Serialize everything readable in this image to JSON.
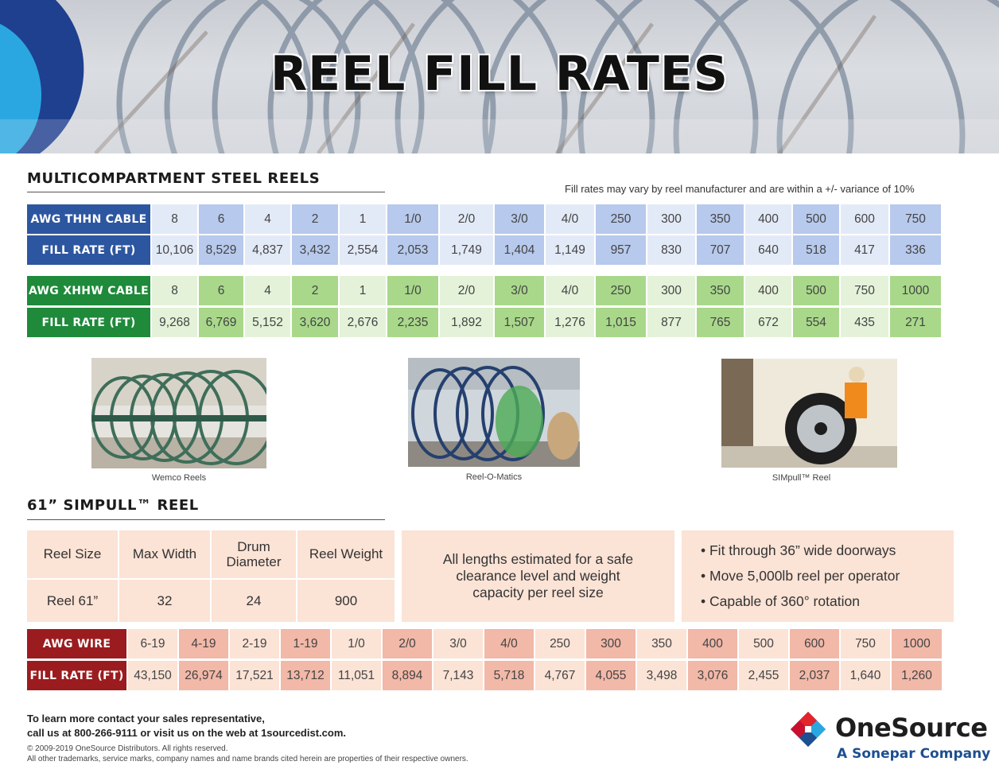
{
  "hero": {
    "title": "REEL FILL RATES"
  },
  "steel": {
    "heading": "MULTICOMPARTMENT STEEL REELS",
    "note": "Fill rates may vary by reel manufacturer and are within a +/- variance of 10%",
    "thhn": {
      "label": "AWG THHN CABLE",
      "sizes": [
        "8",
        "6",
        "4",
        "2",
        "1",
        "1/0",
        "2/0",
        "3/0",
        "4/0",
        "250",
        "300",
        "350",
        "400",
        "500",
        "600",
        "750"
      ],
      "rate_label": "FILL RATE (FT)",
      "rates": [
        "10,106",
        "8,529",
        "4,837",
        "3,432",
        "2,554",
        "2,053",
        "1,749",
        "1,404",
        "1,149",
        "957",
        "830",
        "707",
        "640",
        "518",
        "417",
        "336"
      ]
    },
    "xhhw": {
      "label": "AWG XHHW CABLE",
      "sizes": [
        "8",
        "6",
        "4",
        "2",
        "1",
        "1/0",
        "2/0",
        "3/0",
        "4/0",
        "250",
        "300",
        "350",
        "400",
        "500",
        "750",
        "1000"
      ],
      "rate_label": "FILL RATE (FT)",
      "rates": [
        "9,268",
        "6,769",
        "5,152",
        "3,620",
        "2,676",
        "2,235",
        "1,892",
        "1,507",
        "1,276",
        "1,015",
        "877",
        "765",
        "672",
        "554",
        "435",
        "271"
      ]
    }
  },
  "photos": [
    {
      "caption": "Wemco Reels"
    },
    {
      "caption": "Reel-O-Matics"
    },
    {
      "caption": "SIMpull™ Reel"
    }
  ],
  "simpull": {
    "heading": "61” SIMPULL™  REEL",
    "headers": [
      "Reel Size",
      "Max Width",
      "Drum Diameter",
      "Reel  Weight"
    ],
    "values": [
      "Reel 61”",
      "32",
      "24",
      "900"
    ],
    "estimate": "All lengths estimated for a safe clearance level and weight capacity per reel size",
    "bullets": [
      "• Fit through 36” wide doorways",
      "• Move 5,000lb reel per operator",
      "• Capable of 360° rotation"
    ],
    "wire": {
      "label": "AWG WIRE",
      "sizes": [
        "6-19",
        "4-19",
        "2-19",
        "1-19",
        "1/0",
        "2/0",
        "3/0",
        "4/0",
        "250",
        "300",
        "350",
        "400",
        "500",
        "600",
        "750",
        "1000"
      ],
      "rate_label": "FILL RATE (FT)",
      "rates": [
        "43,150",
        "26,974",
        "17,521",
        "13,712",
        "11,051",
        "8,894",
        "7,143",
        "5,718",
        "4,767",
        "4,055",
        "3,498",
        "3,076",
        "2,455",
        "2,037",
        "1,640",
        "1,260"
      ]
    }
  },
  "footer": {
    "contact_line1": "To learn more contact your sales representative,",
    "contact_line2": "call us at 800-266-9111 or visit us on the web at 1sourcedist.com.",
    "legal_line1": "© 2009-2019 OneSource Distributors. All rights reserved.",
    "legal_line2": "All other trademarks, service marks, company names and name brands cited herein are properties of their respective owners.",
    "brand": "OneSource",
    "tagline": "A Sonepar Company"
  },
  "colors": {
    "blue_dark": "#2d56a0",
    "blue_mid": "#b7c9ec",
    "blue_light": "#e3eaf7",
    "green_dark": "#1e8a3a",
    "green_mid": "#a9d88b",
    "green_light": "#e4f2d9",
    "red_dark": "#9b1c1f",
    "red_mid": "#f2b8a8",
    "red_light": "#fbe3d6"
  }
}
